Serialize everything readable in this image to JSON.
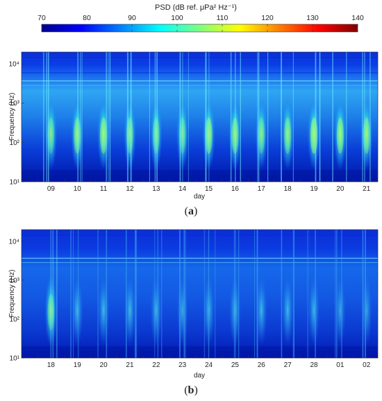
{
  "colorbar": {
    "title": "PSD (dB ref. μPa² Hz⁻¹)",
    "ticks": [
      "70",
      "80",
      "90",
      "100",
      "110",
      "120",
      "130",
      "140"
    ],
    "range": [
      70,
      140
    ],
    "colormap": "jet"
  },
  "chart_data": [
    {
      "type": "heatmap",
      "panel_label": "(a)",
      "xlabel": "day",
      "ylabel": "Frequency (Hz)",
      "categories": [
        "09",
        "10",
        "11",
        "12",
        "13",
        "14",
        "15",
        "16",
        "17",
        "18",
        "19",
        "20",
        "21"
      ],
      "y_ticks": [
        "10¹",
        "10²",
        "10³",
        "10⁴"
      ],
      "ylim": [
        10,
        20000
      ],
      "y_scale": "log",
      "clim": [
        70,
        140
      ],
      "peak_level_db": [
        100,
        104,
        106,
        102,
        101,
        100,
        106,
        104,
        101,
        103,
        108,
        105,
        104
      ]
    },
    {
      "type": "heatmap",
      "panel_label": "(b)",
      "xlabel": "day",
      "ylabel": "Frequency (Hz)",
      "categories": [
        "18",
        "19",
        "20",
        "21",
        "22",
        "23",
        "24",
        "25",
        "26",
        "27",
        "28",
        "01",
        "02"
      ],
      "y_ticks": [
        "10¹",
        "10²",
        "10³",
        "10⁴"
      ],
      "ylim": [
        10,
        20000
      ],
      "y_scale": "log",
      "clim": [
        70,
        140
      ],
      "peak_level_db": [
        101,
        96,
        96,
        96,
        94,
        90,
        94,
        95,
        95,
        95,
        94,
        88,
        87
      ]
    }
  ]
}
